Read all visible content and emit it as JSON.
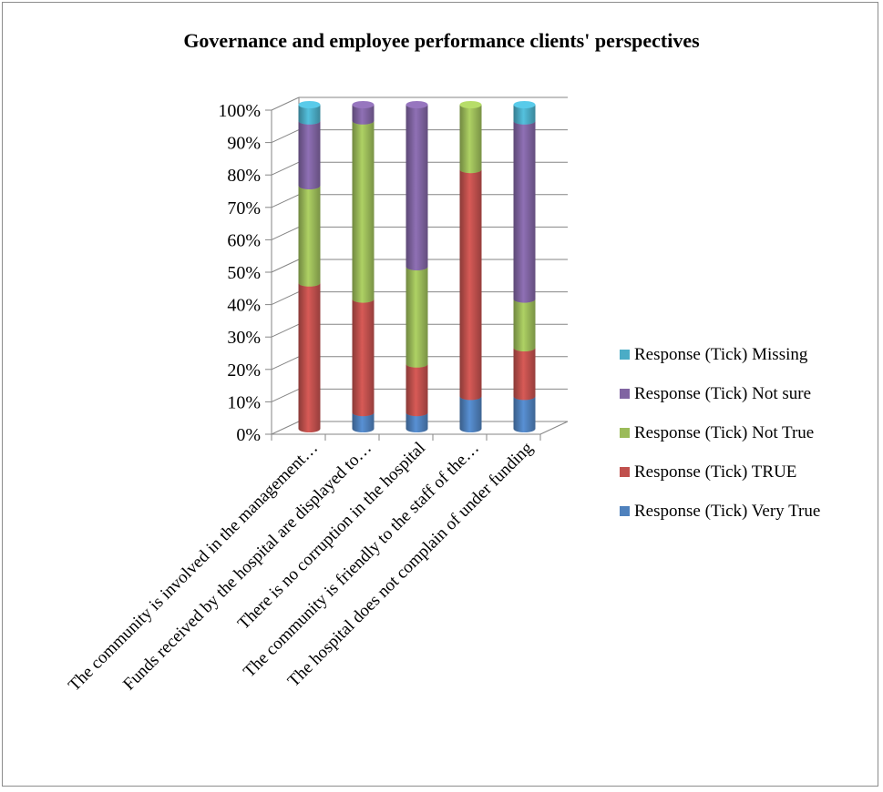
{
  "chart_data": {
    "type": "bar",
    "stacked": true,
    "percent": true,
    "title": "Governance and employee performance clients' perspectives",
    "categories": [
      "The community is involved in the management…",
      "Funds received by the hospital are displayed to…",
      "There is no corruption in the hospital",
      "The community is friendly to the staff of the…",
      "The hospital does not complain of under funding"
    ],
    "series": [
      {
        "name": "Response (Tick) Very True",
        "color": "#4f81bd",
        "values": [
          0,
          5,
          5,
          10,
          10
        ]
      },
      {
        "name": "Response (Tick) TRUE",
        "color": "#c0504d",
        "values": [
          45,
          35,
          15,
          70,
          15
        ]
      },
      {
        "name": "Response (Tick) Not True",
        "color": "#9bbb59",
        "values": [
          30,
          55,
          30,
          20,
          15
        ]
      },
      {
        "name": "Response (Tick) Not sure",
        "color": "#8064a2",
        "values": [
          20,
          5,
          50,
          0,
          55
        ]
      },
      {
        "name": "Response (Tick) Missing",
        "color": "#4bacc6",
        "values": [
          5,
          0,
          0,
          0,
          5
        ]
      }
    ],
    "legend_order": [
      4,
      3,
      2,
      1,
      0
    ],
    "y_ticks": [
      "0%",
      "10%",
      "20%",
      "30%",
      "40%",
      "50%",
      "60%",
      "70%",
      "80%",
      "90%",
      "100%"
    ],
    "ylim": [
      0,
      100
    ],
    "grid": true,
    "legend_position": "right"
  }
}
